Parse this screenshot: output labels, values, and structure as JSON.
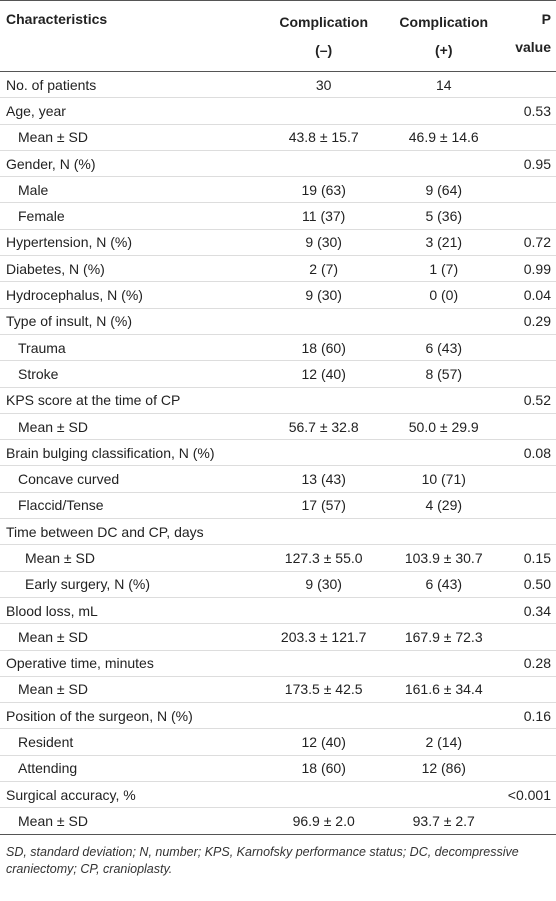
{
  "table": {
    "header": [
      [
        "Characteristics"
      ],
      [
        "Complication",
        "(–)"
      ],
      [
        "Complication",
        "(+)"
      ],
      [
        "P value"
      ]
    ],
    "rows": [
      {
        "cells": [
          "No. of patients",
          "30",
          "14",
          null
        ],
        "indent": 0
      },
      {
        "cells": [
          "Age, year",
          null,
          null,
          "0.53"
        ],
        "indent": 0
      },
      {
        "cells": [
          "Mean ± SD",
          "43.8 ± 15.7",
          "46.9 ± 14.6",
          null
        ],
        "indent": 1
      },
      {
        "cells": [
          "Gender, N (%)",
          null,
          null,
          "0.95"
        ],
        "indent": 0
      },
      {
        "cells": [
          "Male",
          "19 (63)",
          "9 (64)",
          null
        ],
        "indent": 1
      },
      {
        "cells": [
          "Female",
          "11 (37)",
          "5 (36)",
          null
        ],
        "indent": 1
      },
      {
        "cells": [
          "Hypertension, N (%)",
          "9 (30)",
          "3 (21)",
          "0.72"
        ],
        "indent": 0
      },
      {
        "cells": [
          "Diabetes, N (%)",
          "2 (7)",
          "1 (7)",
          "0.99"
        ],
        "indent": 0
      },
      {
        "cells": [
          "Hydrocephalus, N (%)",
          "9 (30)",
          "0 (0)",
          "0.04"
        ],
        "indent": 0
      },
      {
        "cells": [
          "Type of insult, N (%)",
          null,
          null,
          "0.29"
        ],
        "indent": 0
      },
      {
        "cells": [
          "Trauma",
          "18 (60)",
          "6 (43)",
          null
        ],
        "indent": 1
      },
      {
        "cells": [
          "Stroke",
          "12 (40)",
          "8 (57)",
          null
        ],
        "indent": 1
      },
      {
        "cells": [
          "KPS score at the time of CP",
          null,
          null,
          "0.52"
        ],
        "indent": 0
      },
      {
        "cells": [
          "Mean ± SD",
          "56.7 ± 32.8",
          "50.0 ± 29.9",
          null
        ],
        "indent": 1
      },
      {
        "cells": [
          "Brain bulging classification, N (%)",
          null,
          null,
          "0.08"
        ],
        "indent": 0
      },
      {
        "cells": [
          "Concave curved",
          "13 (43)",
          "10 (71)",
          null
        ],
        "indent": 1
      },
      {
        "cells": [
          "Flaccid/Tense",
          "17 (57)",
          "4 (29)",
          null
        ],
        "indent": 1
      },
      {
        "cells": [
          "Time between DC and CP, days",
          null,
          null,
          null
        ],
        "indent": 0
      },
      {
        "cells": [
          "Mean ± SD",
          "127.3 ± 55.0",
          "103.9 ± 30.7",
          "0.15"
        ],
        "indent": 2
      },
      {
        "cells": [
          "Early surgery, N (%)",
          "9 (30)",
          "6 (43)",
          "0.50"
        ],
        "indent": 2
      },
      {
        "cells": [
          "Blood loss, mL",
          null,
          null,
          "0.34"
        ],
        "indent": 0
      },
      {
        "cells": [
          "Mean ± SD",
          "203.3 ± 121.7",
          "167.9 ± 72.3",
          null
        ],
        "indent": 1
      },
      {
        "cells": [
          "Operative time, minutes",
          null,
          null,
          "0.28"
        ],
        "indent": 0
      },
      {
        "cells": [
          "Mean ± SD",
          "173.5 ± 42.5",
          "161.6 ± 34.4",
          null
        ],
        "indent": 1
      },
      {
        "cells": [
          "Position of the surgeon, N (%)",
          null,
          null,
          "0.16"
        ],
        "indent": 0
      },
      {
        "cells": [
          "Resident",
          "12 (40)",
          "2 (14)",
          null
        ],
        "indent": 1
      },
      {
        "cells": [
          "Attending",
          "18 (60)",
          "12 (86)",
          null
        ],
        "indent": 1
      },
      {
        "cells": [
          "Surgical accuracy, %",
          null,
          null,
          "<0.001"
        ],
        "indent": 0
      },
      {
        "cells": [
          "Mean ± SD",
          "96.9 ± 2.0",
          "93.7 ± 2.7",
          null
        ],
        "indent": 1
      }
    ],
    "footnote": "SD, standard deviation; N, number; KPS, Karnofsky performance status; DC, decompressive craniectomy; CP, cranioplasty."
  }
}
